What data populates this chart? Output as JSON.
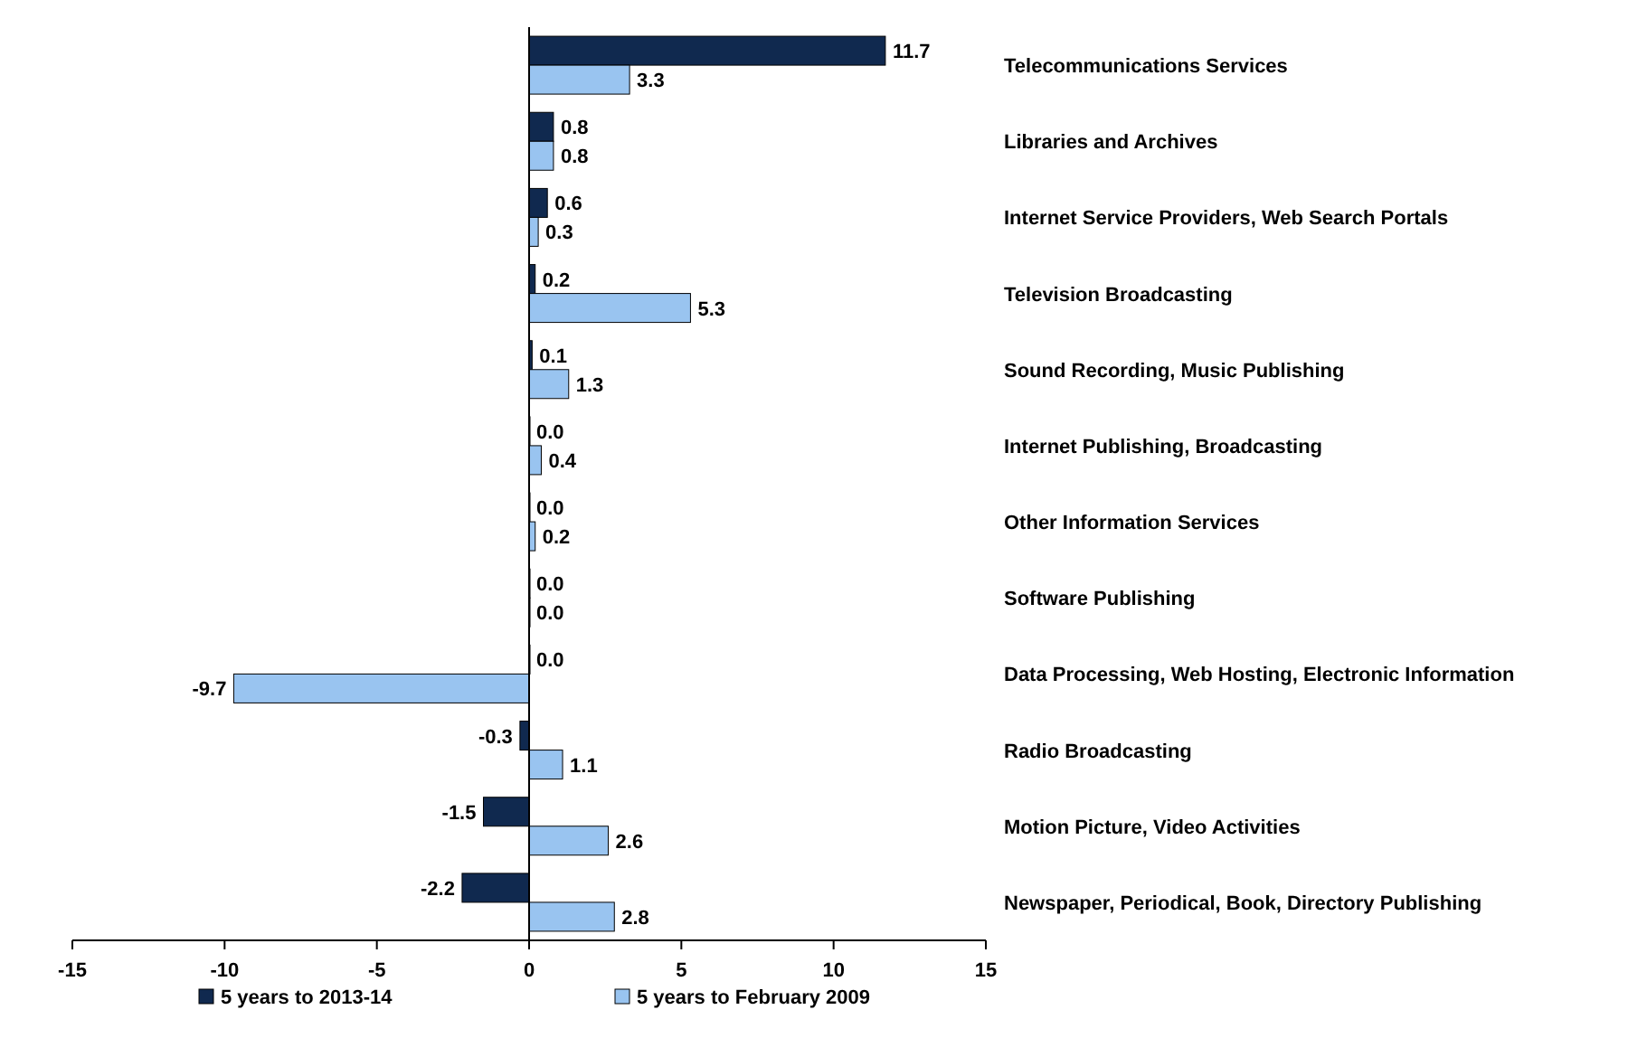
{
  "chart_data": {
    "type": "bar",
    "orientation": "horizontal",
    "categories": [
      "Telecommunications Services",
      "Libraries and Archives",
      "Internet Service Providers, Web Search Portals",
      "Television Broadcasting",
      "Sound Recording, Music Publishing",
      "Internet Publishing, Broadcasting",
      "Other Information Services",
      "Software Publishing",
      "Data Processing, Web Hosting, Electronic Information",
      "Radio Broadcasting",
      "Motion Picture, Video Activities",
      "Newspaper, Periodical, Book, Directory Publishing"
    ],
    "series": [
      {
        "name": "5 years to 2013-14",
        "color": "#10294f",
        "values": [
          11.7,
          0.8,
          0.6,
          0.2,
          0.1,
          0.0,
          0.0,
          0.0,
          0.0,
          -0.3,
          -1.5,
          -2.2
        ],
        "value_labels": [
          "11.7",
          "0.8",
          "0.6",
          "0.2",
          "0.1",
          "0.0",
          "0.0",
          "0.0",
          "0.0",
          "-0.3",
          "-1.5",
          "-2.2"
        ]
      },
      {
        "name": "5 years to February 2009",
        "color": "#99c4f0",
        "values": [
          3.3,
          0.8,
          0.3,
          5.3,
          1.3,
          0.4,
          0.2,
          0.0,
          -9.7,
          1.1,
          2.6,
          2.8
        ],
        "value_labels": [
          "3.3",
          "0.8",
          "0.3",
          "5.3",
          "1.3",
          "0.4",
          "0.2",
          "0.0",
          "-9.7",
          "1.1",
          "2.6",
          "2.8"
        ]
      }
    ],
    "xlim": [
      -15,
      15
    ],
    "xticks": [
      -15,
      -10,
      -5,
      0,
      5,
      10,
      15
    ],
    "legend": "bottom"
  }
}
